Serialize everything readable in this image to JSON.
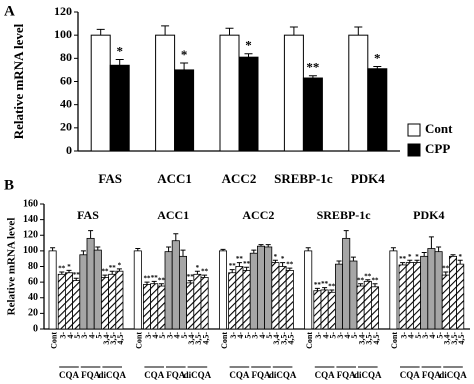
{
  "chart_data": [
    {
      "type": "bar",
      "panel": "A",
      "y_label": "Relative mRNA level",
      "categories": [
        "FAS",
        "ACC1",
        "ACC2",
        "SREBP-1c",
        "PDK4"
      ],
      "series": [
        {
          "name": "Cont",
          "color": "#ffffff",
          "values": [
            100,
            100,
            100,
            100,
            100
          ],
          "errors": [
            5,
            8,
            6,
            7,
            7
          ]
        },
        {
          "name": "CPP",
          "color": "#000000",
          "values": [
            74,
            70,
            81,
            63,
            71
          ],
          "errors": [
            5,
            6,
            3,
            2,
            2
          ],
          "sig": [
            "*",
            "*",
            "*",
            "**",
            "*"
          ]
        }
      ],
      "ylim": [
        0,
        120
      ],
      "yticks": [
        0,
        20,
        40,
        60,
        80,
        100,
        120
      ],
      "legend": "right"
    },
    {
      "type": "grouped-bar",
      "panel": "B",
      "y_label": "Relative mRNA level",
      "subgroups": [
        {
          "bars": [
            "Cont"
          ],
          "fill": "#ffffff"
        },
        {
          "name": "CQA",
          "bars": [
            "3-",
            "4-",
            "5-"
          ],
          "fill": "hatch"
        },
        {
          "name": "FQA",
          "bars": [
            "3-",
            "4-",
            "5-"
          ],
          "fill": "#a6a6a6"
        },
        {
          "name": "diCQA",
          "bars": [
            "3,4-",
            "3,5-",
            "4,5-"
          ],
          "fill": "hatch"
        }
      ],
      "series": [
        {
          "name": "FAS",
          "values": [
            100,
            70,
            72,
            62,
            95,
            116,
            101,
            66,
            70,
            74
          ],
          "errors": [
            4,
            3,
            3,
            3,
            5,
            10,
            4,
            3,
            4,
            3
          ],
          "sig": [
            null,
            "**",
            "*",
            "**",
            null,
            null,
            null,
            "**",
            "**",
            "*"
          ]
        },
        {
          "name": "ACC1",
          "values": [
            100,
            57,
            58,
            55,
            99,
            113,
            93,
            59,
            70,
            66
          ],
          "errors": [
            3,
            3,
            3,
            3,
            6,
            9,
            8,
            3,
            4,
            3
          ],
          "sig": [
            null,
            "**",
            "**",
            "**",
            null,
            null,
            null,
            "**",
            "*",
            "**"
          ]
        },
        {
          "name": "ACC2",
          "values": [
            100,
            72,
            80,
            75,
            97,
            106,
            105,
            85,
            80,
            75
          ],
          "errors": [
            2,
            4,
            5,
            4,
            4,
            2,
            3,
            3,
            5,
            3
          ],
          "sig": [
            null,
            "**",
            "**",
            "**",
            null,
            null,
            null,
            "*",
            "*",
            "**"
          ]
        },
        {
          "name": "SREBP-1c",
          "values": [
            100,
            49,
            50,
            47,
            83,
            116,
            87,
            55,
            61,
            54
          ],
          "errors": [
            4,
            3,
            3,
            3,
            4,
            10,
            5,
            3,
            2,
            4
          ],
          "sig": [
            null,
            "**",
            "**",
            "**",
            null,
            null,
            null,
            "**",
            "**",
            "**"
          ]
        },
        {
          "name": "PDK4",
          "values": [
            100,
            82,
            85,
            85,
            93,
            103,
            99,
            69,
            93,
            83
          ],
          "errors": [
            4,
            3,
            3,
            3,
            5,
            15,
            6,
            4,
            2,
            5
          ],
          "sig": [
            null,
            "**",
            "*",
            "*",
            null,
            null,
            null,
            "**",
            null,
            "*"
          ]
        }
      ],
      "ylim": [
        0,
        160
      ],
      "yticks": [
        0,
        20,
        40,
        60,
        80,
        100,
        120,
        140,
        160
      ]
    }
  ]
}
